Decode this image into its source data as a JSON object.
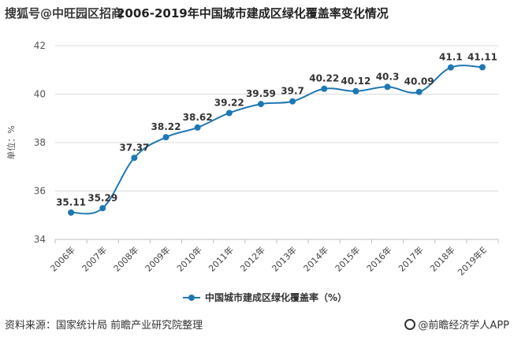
{
  "watermark_text": "搜狐号@中旺园区招商",
  "source_note": "资料来源：国家统计局 前瞻产业研究院整理",
  "brand_note": "@前瞻经济学人APP",
  "chart_data": {
    "type": "line",
    "title": "2006-2019年中国城市建成区绿化覆盖率变化情况",
    "ylabel": "单位：%",
    "xlabel": "",
    "categories": [
      "2006年",
      "2007年",
      "2008年",
      "2009年",
      "2010年",
      "2011年",
      "2012年",
      "2013年",
      "2014年",
      "2015年",
      "2016年",
      "2017年",
      "2018年",
      "2019年E"
    ],
    "series": [
      {
        "name": "中国城市建成区绿化覆盖率（%）",
        "values": [
          35.11,
          35.29,
          37.37,
          38.22,
          38.62,
          39.22,
          39.59,
          39.7,
          40.22,
          40.12,
          40.3,
          40.09,
          41.1,
          41.11
        ],
        "labels": [
          "35.11",
          "35.29",
          "37.37",
          "38.22",
          "38.62",
          "39.22",
          "39.59",
          "39.7",
          "40.22",
          "40.12",
          "40.3",
          "40.09",
          "41.1",
          "41.11"
        ]
      }
    ],
    "ylim": [
      34,
      42
    ],
    "yticks": [
      34,
      36,
      38,
      40,
      42
    ],
    "grid": true,
    "legend_position": "bottom",
    "line_color": "#1f77b4"
  }
}
